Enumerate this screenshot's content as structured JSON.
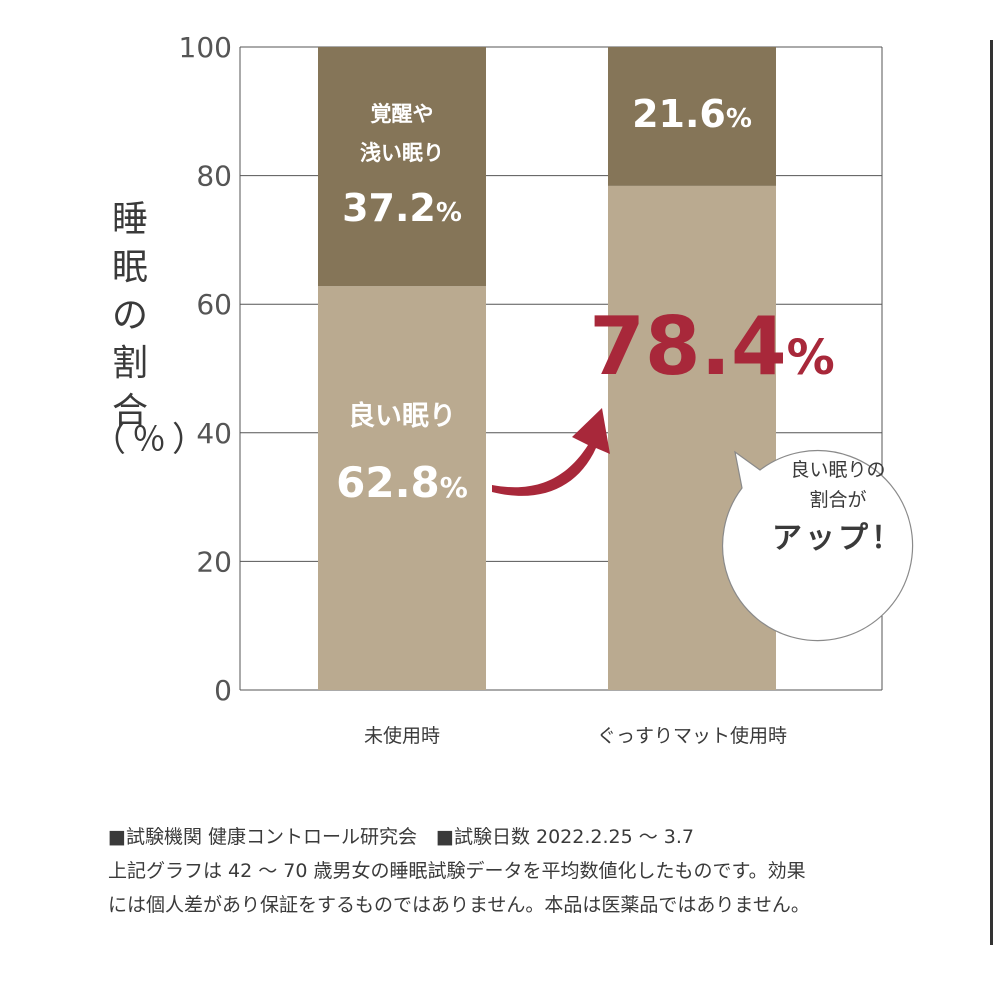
{
  "chart_data": {
    "type": "bar",
    "stacked": true,
    "categories": [
      "未使用時",
      "ぐっすりマット使用時"
    ],
    "series": [
      {
        "name": "良い眠り",
        "values": [
          62.8,
          78.4
        ],
        "color": "#baaa90"
      },
      {
        "name": "覚醒や浅い眠り",
        "values": [
          37.2,
          21.6
        ],
        "color": "#857558"
      }
    ],
    "ylabel": "睡眠の割合",
    "ylabel_unit": "（％）",
    "yticks": [
      0,
      20,
      40,
      60,
      80,
      100
    ],
    "ylim": [
      0,
      100
    ],
    "grid": true,
    "labels": {
      "bar1_top_text": [
        "覚醒や",
        "浅い眠り"
      ],
      "bar1_top_value": "37.2",
      "bar1_bottom_text": "良い眠り",
      "bar1_bottom_value": "62.8",
      "bar2_top_value": "21.6",
      "bar2_highlight_value": "78.4",
      "percent": "%"
    },
    "accent_color": "#a8283a"
  },
  "bubble": {
    "line1": "良い眠りの",
    "line2": "割合が",
    "line3": "アップ！"
  },
  "notes": {
    "line1": "■試験機関 健康コントロール研究会　■試験日数  2022.2.25 ～ 3.7",
    "line2": "上記グラフは 42 ～ 70 歳男女の睡眠試験データを平均数値化したものです。効果",
    "line3": "には個人差があり保証をするものではありません。本品は医薬品ではありません。"
  }
}
